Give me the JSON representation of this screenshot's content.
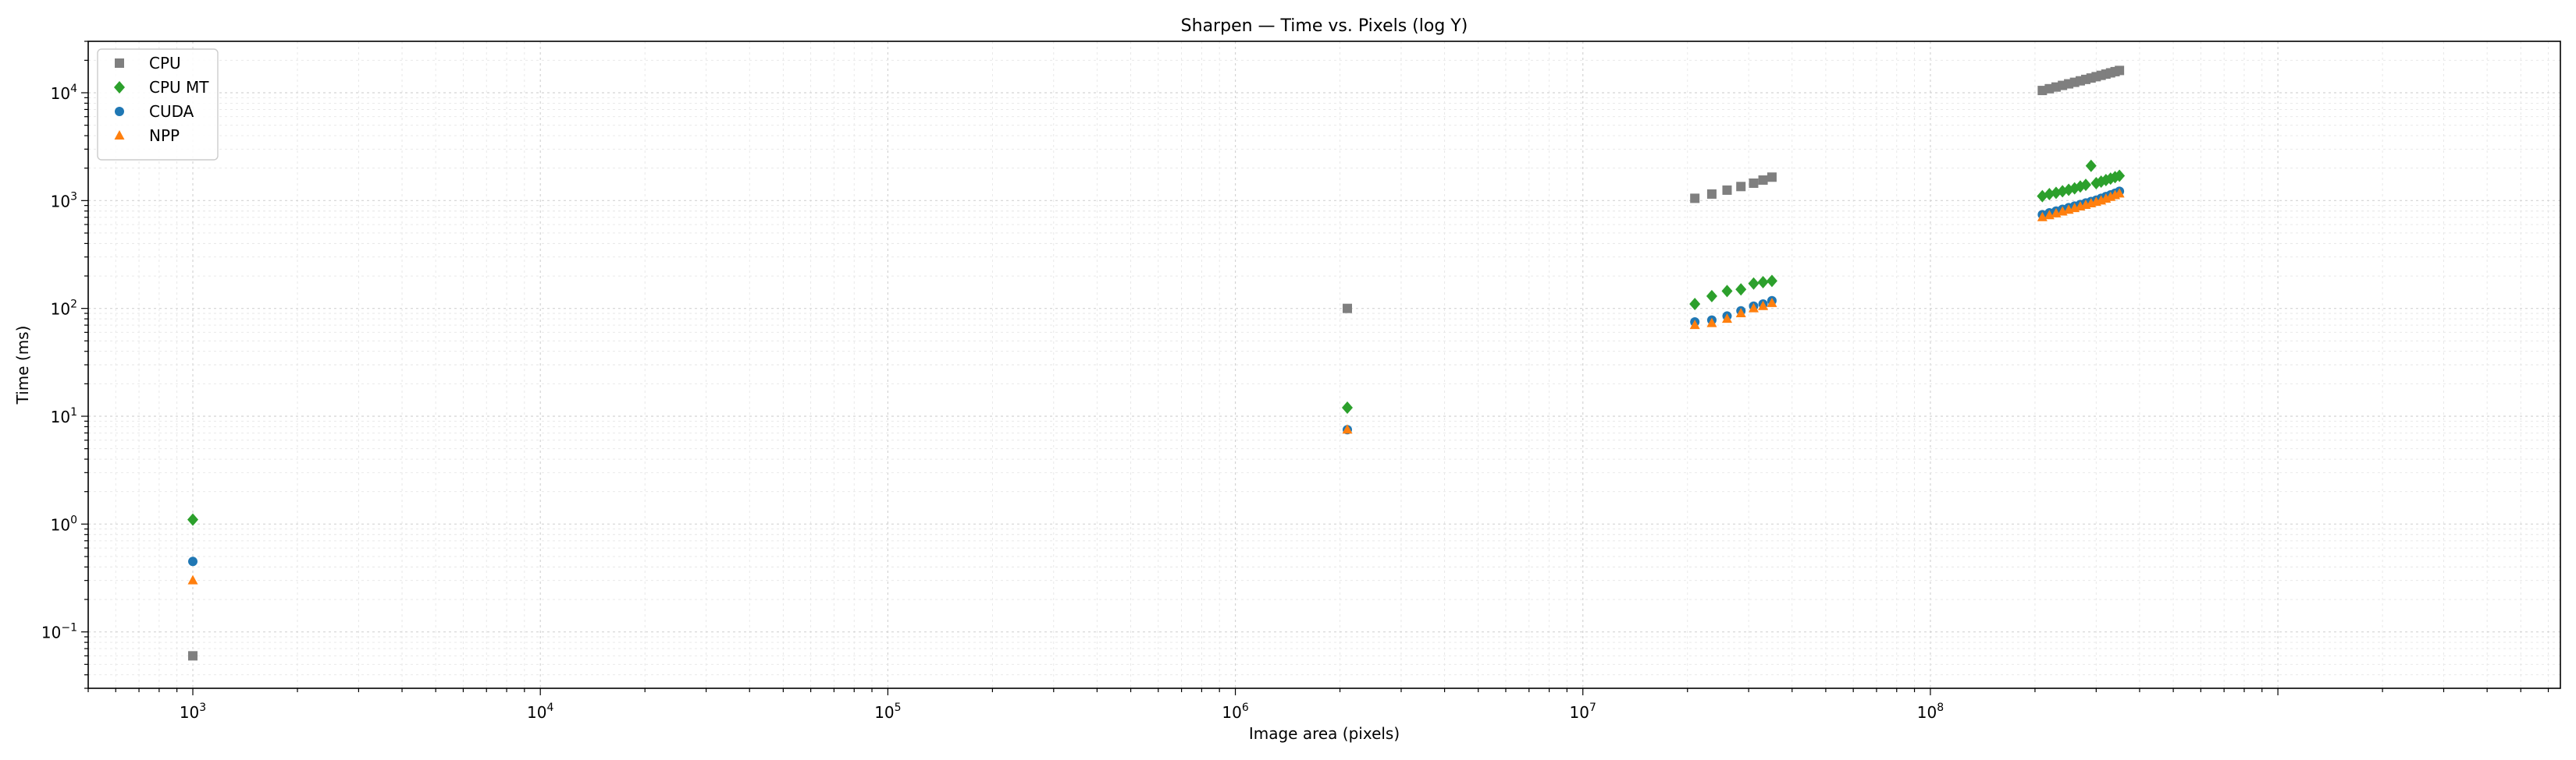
{
  "chart_data": {
    "type": "scatter",
    "title": "Sharpen — Time vs. Pixels (log Y)",
    "xlabel": "Image area (pixels)",
    "ylabel": "Time (ms)",
    "xscale": "log",
    "yscale": "log",
    "xlim": [
      500,
      6500000000
    ],
    "ylim": [
      0.03,
      30000
    ],
    "grid": "on (major and minor, light dotted)",
    "legend_position": "top-left",
    "x_ticks": [
      {
        "base": "10",
        "exp": "3"
      },
      {
        "base": "10",
        "exp": "4"
      },
      {
        "base": "10",
        "exp": "5"
      },
      {
        "base": "10",
        "exp": "6"
      },
      {
        "base": "10",
        "exp": "7"
      },
      {
        "base": "10",
        "exp": "8"
      }
    ],
    "y_ticks": [
      {
        "base": "10",
        "exp": "−1"
      },
      {
        "base": "10",
        "exp": "0"
      },
      {
        "base": "10",
        "exp": "1"
      },
      {
        "base": "10",
        "exp": "2"
      },
      {
        "base": "10",
        "exp": "3"
      },
      {
        "base": "10",
        "exp": "4"
      }
    ],
    "series": [
      {
        "name": "CPU",
        "marker": "square",
        "color": "#7f7f7f",
        "points": [
          [
            1000,
            0.06
          ],
          [
            2100000,
            100
          ],
          [
            21000000,
            1050
          ],
          [
            23500000,
            1150
          ],
          [
            26000000,
            1250
          ],
          [
            28500000,
            1350
          ],
          [
            31000000,
            1450
          ],
          [
            33000000,
            1550
          ],
          [
            35000000,
            1650
          ],
          [
            210000000,
            10500
          ],
          [
            220000000,
            10900
          ],
          [
            230000000,
            11300
          ],
          [
            240000000,
            11700
          ],
          [
            250000000,
            12100
          ],
          [
            260000000,
            12500
          ],
          [
            270000000,
            12900
          ],
          [
            280000000,
            13300
          ],
          [
            290000000,
            13700
          ],
          [
            300000000,
            14100
          ],
          [
            310000000,
            14500
          ],
          [
            320000000,
            14900
          ],
          [
            330000000,
            15300
          ],
          [
            340000000,
            15700
          ],
          [
            350000000,
            16100
          ]
        ]
      },
      {
        "name": "CPU MT",
        "marker": "diamond",
        "color": "#2ca02c",
        "points": [
          [
            1000,
            1.1
          ],
          [
            2100000,
            12
          ],
          [
            21000000,
            110
          ],
          [
            23500000,
            130
          ],
          [
            26000000,
            145
          ],
          [
            28500000,
            150
          ],
          [
            31000000,
            170
          ],
          [
            33000000,
            175
          ],
          [
            35000000,
            180
          ],
          [
            210000000,
            1100
          ],
          [
            220000000,
            1150
          ],
          [
            230000000,
            1180
          ],
          [
            240000000,
            1220
          ],
          [
            250000000,
            1260
          ],
          [
            260000000,
            1300
          ],
          [
            270000000,
            1350
          ],
          [
            280000000,
            1400
          ],
          [
            290000000,
            2100
          ],
          [
            300000000,
            1450
          ],
          [
            310000000,
            1500
          ],
          [
            320000000,
            1550
          ],
          [
            330000000,
            1600
          ],
          [
            340000000,
            1650
          ],
          [
            350000000,
            1700
          ]
        ]
      },
      {
        "name": "CUDA",
        "marker": "circle",
        "color": "#1f77b4",
        "points": [
          [
            1000,
            0.45
          ],
          [
            2100000,
            7.5
          ],
          [
            21000000,
            75
          ],
          [
            23500000,
            78
          ],
          [
            26000000,
            85
          ],
          [
            28500000,
            95
          ],
          [
            31000000,
            105
          ],
          [
            33000000,
            110
          ],
          [
            35000000,
            118
          ],
          [
            210000000,
            740
          ],
          [
            220000000,
            770
          ],
          [
            230000000,
            800
          ],
          [
            240000000,
            830
          ],
          [
            250000000,
            860
          ],
          [
            260000000,
            890
          ],
          [
            270000000,
            920
          ],
          [
            280000000,
            950
          ],
          [
            290000000,
            980
          ],
          [
            300000000,
            1010
          ],
          [
            310000000,
            1050
          ],
          [
            320000000,
            1090
          ],
          [
            330000000,
            1130
          ],
          [
            340000000,
            1170
          ],
          [
            350000000,
            1220
          ]
        ]
      },
      {
        "name": "NPP",
        "marker": "triangle",
        "color": "#ff7f0e",
        "points": [
          [
            1000,
            0.3
          ],
          [
            2100000,
            7.5
          ],
          [
            21000000,
            70
          ],
          [
            23500000,
            73
          ],
          [
            26000000,
            80
          ],
          [
            28500000,
            90
          ],
          [
            31000000,
            100
          ],
          [
            33000000,
            105
          ],
          [
            35000000,
            112
          ],
          [
            210000000,
            700
          ],
          [
            220000000,
            730
          ],
          [
            230000000,
            760
          ],
          [
            240000000,
            790
          ],
          [
            250000000,
            820
          ],
          [
            260000000,
            850
          ],
          [
            270000000,
            880
          ],
          [
            280000000,
            910
          ],
          [
            290000000,
            940
          ],
          [
            300000000,
            970
          ],
          [
            310000000,
            1000
          ],
          [
            320000000,
            1040
          ],
          [
            330000000,
            1080
          ],
          [
            340000000,
            1120
          ],
          [
            350000000,
            1160
          ]
        ]
      }
    ]
  }
}
